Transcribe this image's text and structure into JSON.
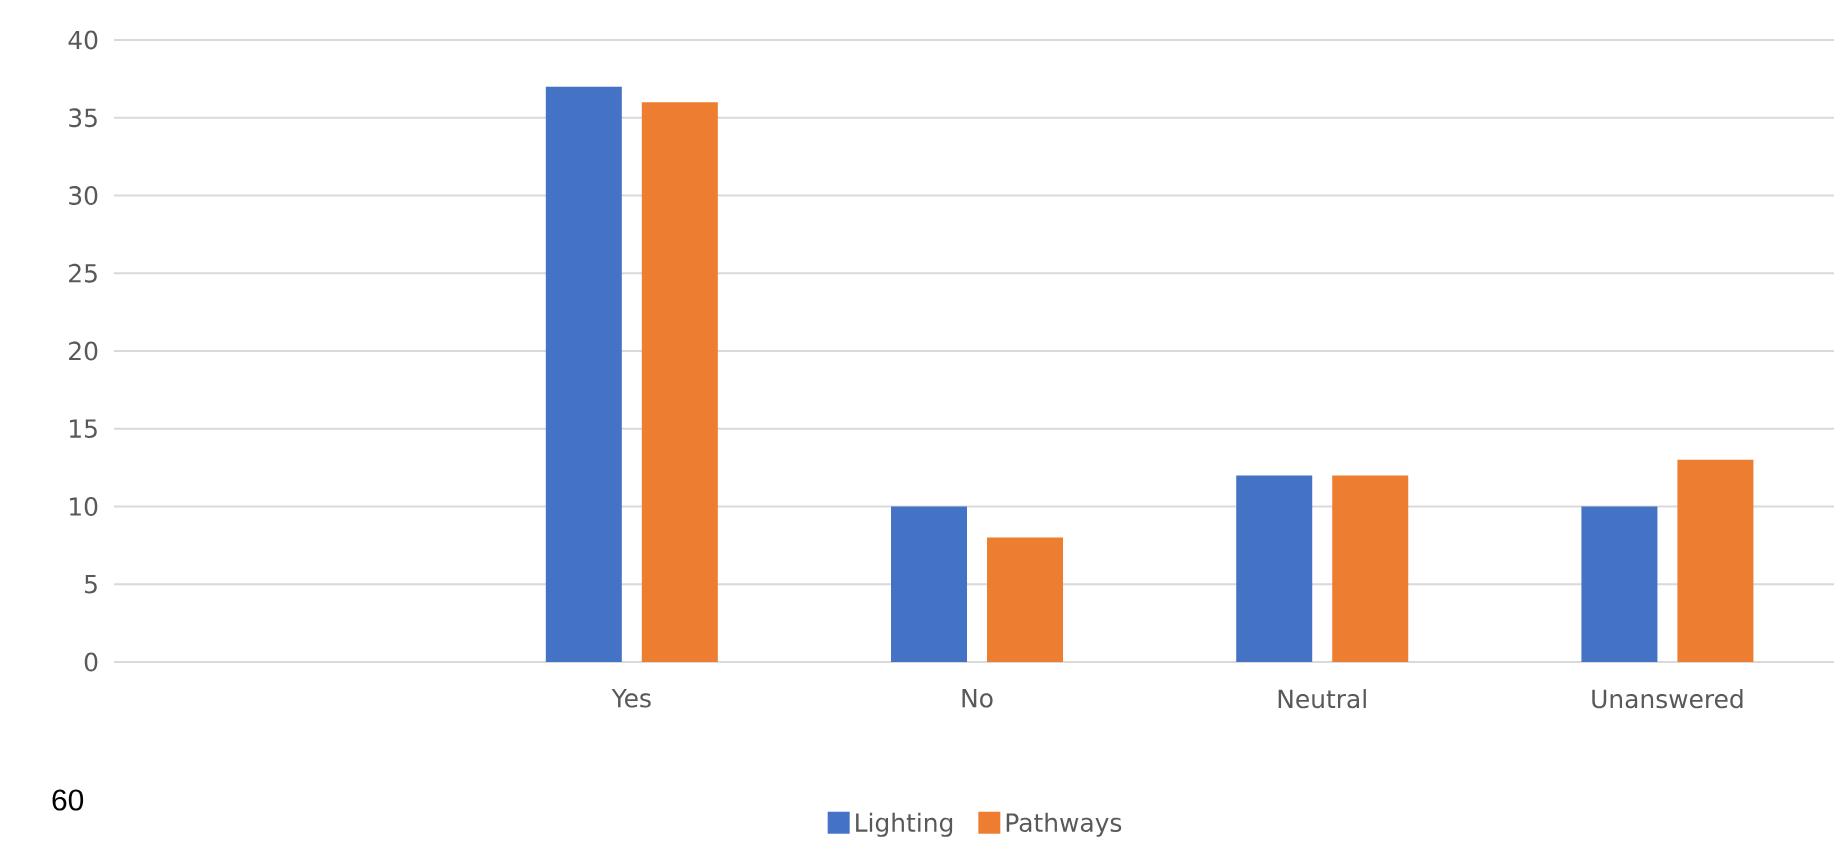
{
  "chart_data": {
    "type": "bar",
    "categories": [
      null,
      "Yes",
      "No",
      "Neutral",
      "Unanswered"
    ],
    "series": [
      {
        "name": "Lighting",
        "color": "#4472c4",
        "values": [
          null,
          37,
          10,
          12,
          10
        ]
      },
      {
        "name": "Pathways",
        "color": "#ed7d31",
        "values": [
          null,
          36,
          8,
          12,
          13
        ]
      }
    ],
    "ylim": [
      0,
      40
    ],
    "yticks": [
      0,
      5,
      10,
      15,
      20,
      25,
      30,
      35,
      40
    ],
    "grid": "y",
    "legend": "bottom",
    "annotations": [
      "60"
    ]
  }
}
